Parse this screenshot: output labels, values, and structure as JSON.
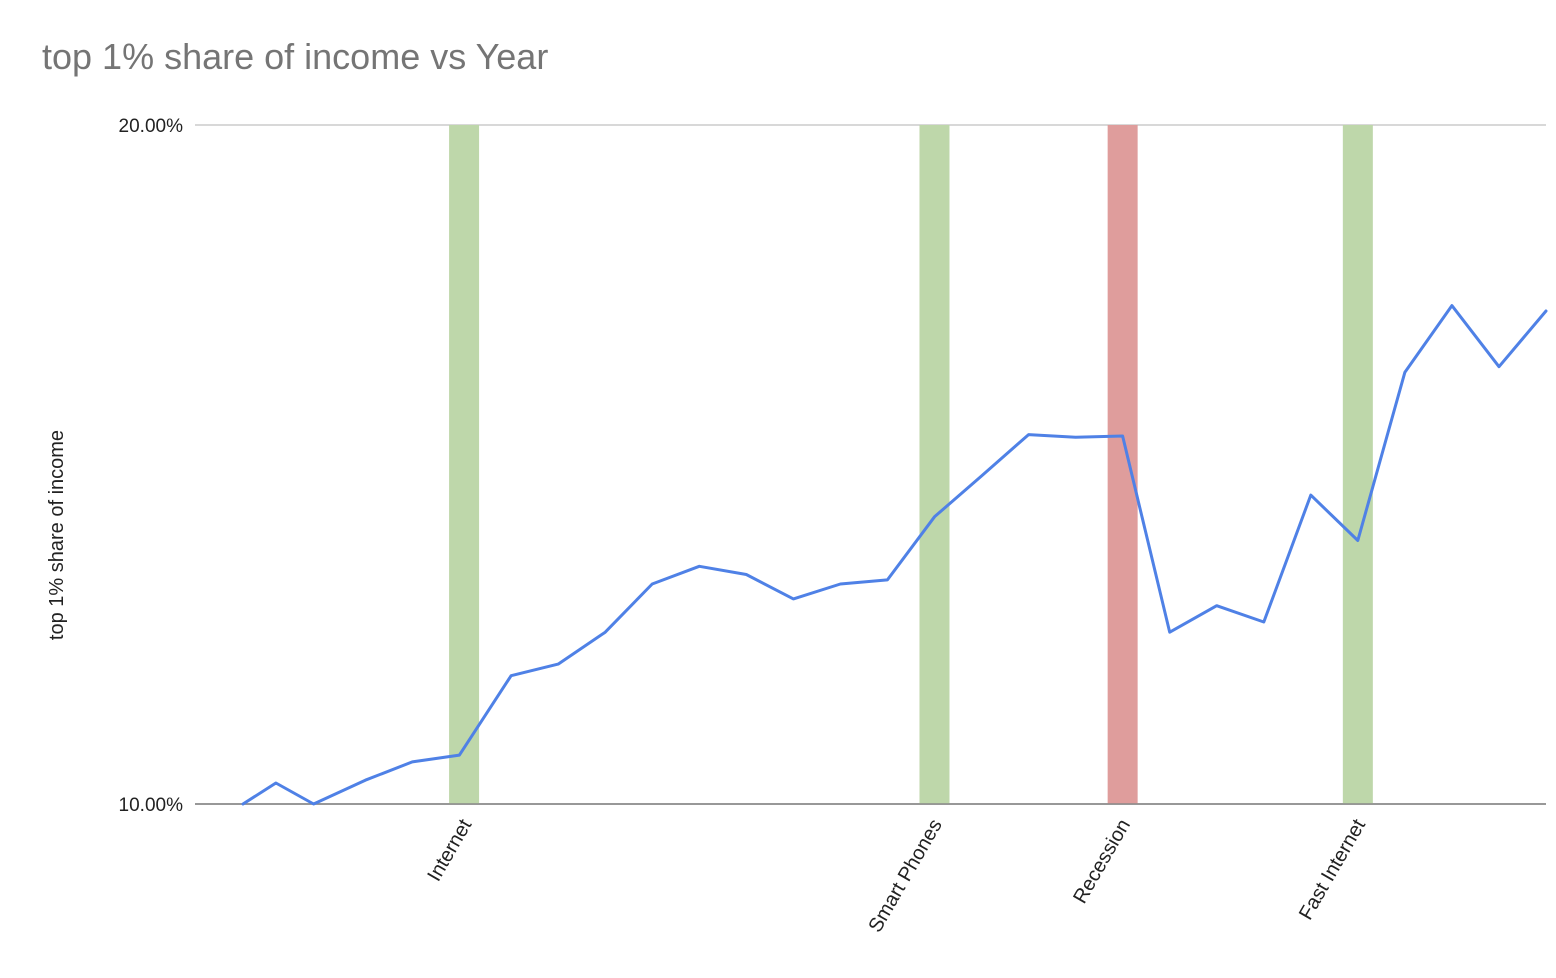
{
  "chart_data": {
    "type": "line",
    "title": "top 1% share of income vs Year",
    "xlabel": "",
    "ylabel": "top 1% share of income",
    "ylim": [
      0.1,
      0.2
    ],
    "yticks": [
      {
        "value": 0.1,
        "label": "10.00%"
      },
      {
        "value": 0.2,
        "label": "20.00%"
      }
    ],
    "grid": true,
    "series": [
      {
        "color": "#4f81e6",
        "points": [
          {
            "x": 0.0,
            "y": 0.1
          },
          {
            "x": 0.7,
            "y": 0.1031
          },
          {
            "x": 1.5,
            "y": 0.1
          },
          {
            "x": 2.6,
            "y": 0.1035
          },
          {
            "x": 3.6,
            "y": 0.1062
          },
          {
            "x": 4.6,
            "y": 0.1072
          },
          {
            "x": 5.7,
            "y": 0.1189
          },
          {
            "x": 6.7,
            "y": 0.1206
          },
          {
            "x": 7.7,
            "y": 0.1253
          },
          {
            "x": 8.7,
            "y": 0.1324
          },
          {
            "x": 9.7,
            "y": 0.135
          },
          {
            "x": 10.7,
            "y": 0.1338
          },
          {
            "x": 11.7,
            "y": 0.1302
          },
          {
            "x": 12.7,
            "y": 0.1324
          },
          {
            "x": 13.7,
            "y": 0.133
          },
          {
            "x": 14.7,
            "y": 0.1423
          },
          {
            "x": 15.7,
            "y": 0.1483
          },
          {
            "x": 16.7,
            "y": 0.1544
          },
          {
            "x": 17.7,
            "y": 0.154
          },
          {
            "x": 18.7,
            "y": 0.1542
          },
          {
            "x": 19.7,
            "y": 0.1253
          },
          {
            "x": 20.7,
            "y": 0.1292
          },
          {
            "x": 21.7,
            "y": 0.1268
          },
          {
            "x": 22.7,
            "y": 0.1455
          },
          {
            "x": 23.7,
            "y": 0.1388
          },
          {
            "x": 24.7,
            "y": 0.1636
          },
          {
            "x": 25.7,
            "y": 0.1734
          },
          {
            "x": 26.7,
            "y": 0.1644
          },
          {
            "x": 27.7,
            "y": 0.1726
          }
        ]
      }
    ],
    "events": [
      {
        "label": "Internet",
        "x": 4.7,
        "color": "#bed7aa"
      },
      {
        "label": "Smart Phones",
        "x": 14.7,
        "color": "#bed7aa"
      },
      {
        "label": "Recession",
        "x": 18.7,
        "color": "#df9d9c"
      },
      {
        "label": "Fast Internet",
        "x": 23.7,
        "color": "#bed7aa"
      }
    ],
    "xlim": [
      0,
      27.7
    ]
  }
}
